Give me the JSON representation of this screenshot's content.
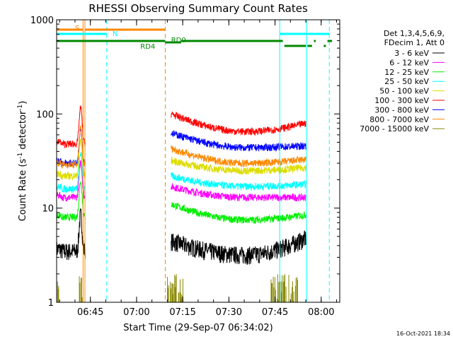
{
  "chart_data": {
    "type": "line",
    "title": "RHESSI Observing Summary Count Rates",
    "xlabel": "Start Time (29-Sep-07 06:34:02)",
    "ylabel_main": "Count Rate (s",
    "ylabel_sup1": "-1",
    "ylabel_mid": " detector",
    "ylabel_sup2": "-1",
    "ylabel_end": ")",
    "yscale": "log",
    "ylim": [
      1,
      1000
    ],
    "xlim_minutes": [
      0,
      92
    ],
    "yticks": [
      {
        "value": 1,
        "label": "1"
      },
      {
        "value": 10,
        "label": "10"
      },
      {
        "value": 100,
        "label": "100"
      },
      {
        "value": 1000,
        "label": "1000"
      }
    ],
    "xticks": [
      {
        "t": 10.97,
        "label": "06:45"
      },
      {
        "t": 25.97,
        "label": "07:00"
      },
      {
        "t": 40.97,
        "label": "07:15"
      },
      {
        "t": 55.97,
        "label": "07:30"
      },
      {
        "t": 70.97,
        "label": "07:45"
      },
      {
        "t": 85.97,
        "label": "08:00"
      }
    ],
    "legend_header": [
      "Det 1,3,4,5,6,9,",
      "FDecim 1, Att 0"
    ],
    "legend_position": "right",
    "series": [
      {
        "name": "3 - 6 keV",
        "color": "#000000",
        "pre": 3.5,
        "a": 4.5,
        "b": 3.2,
        "c": 4.8
      },
      {
        "name": "6 - 12 keV",
        "color": "#ff00ff",
        "pre": 13,
        "a": 17,
        "b": 13,
        "c": 13
      },
      {
        "name": "12 - 25 keV",
        "color": "#00ee00",
        "pre": 8,
        "a": 11,
        "b": 7.5,
        "c": 8.5
      },
      {
        "name": "25 - 50 keV",
        "color": "#00ffff",
        "pre": 16,
        "a": 22,
        "b": 17,
        "c": 18
      },
      {
        "name": "50 - 100 keV",
        "color": "#dddd00",
        "pre": 22,
        "a": 32,
        "b": 25,
        "c": 27
      },
      {
        "name": "100 - 300 keV",
        "color": "#ff0000",
        "pre": 48,
        "a": 100,
        "b": 65,
        "c": 80
      },
      {
        "name": "300 - 800 keV",
        "color": "#0000ff",
        "pre": 30,
        "a": 63,
        "b": 44,
        "c": 46
      },
      {
        "name": "800 - 7000 keV",
        "color": "#ff8800",
        "pre": 29,
        "a": 43,
        "b": 30,
        "c": 33
      },
      {
        "name": "7000 - 15000 keV",
        "color": "#888800",
        "pre": 1,
        "a": 1,
        "b": 1,
        "c": 1
      }
    ],
    "segments": {
      "seg1_start": 0,
      "seg1_end": 9.3,
      "spike_t": 7.8,
      "seg2_start": 37.2,
      "seg2_end": 81.0
    },
    "annotations": {
      "saa_label": "S",
      "night_label": "N",
      "rd0_label": "RD0",
      "rd4_label": "RD4"
    },
    "annotation_colors": {
      "saa": "#ff8800",
      "night": "#00ffff",
      "rd": "#008800"
    },
    "vlines_solid": [
      {
        "t": 8.6,
        "color": "#ff8800"
      },
      {
        "t": 9.2,
        "color": "#ff8800"
      },
      {
        "t": 72.5,
        "color": "#00ffff"
      },
      {
        "t": 81.2,
        "color": "#00ffff"
      }
    ],
    "vlines_dashed": [
      {
        "t": 16.3,
        "color": "#00ffff"
      },
      {
        "t": 35.3,
        "color": "#ff8800"
      },
      {
        "t": 88.6,
        "color": "#00ffff"
      }
    ]
  },
  "footer": {
    "date_stamp": "16-Oct-2021 18:34"
  }
}
